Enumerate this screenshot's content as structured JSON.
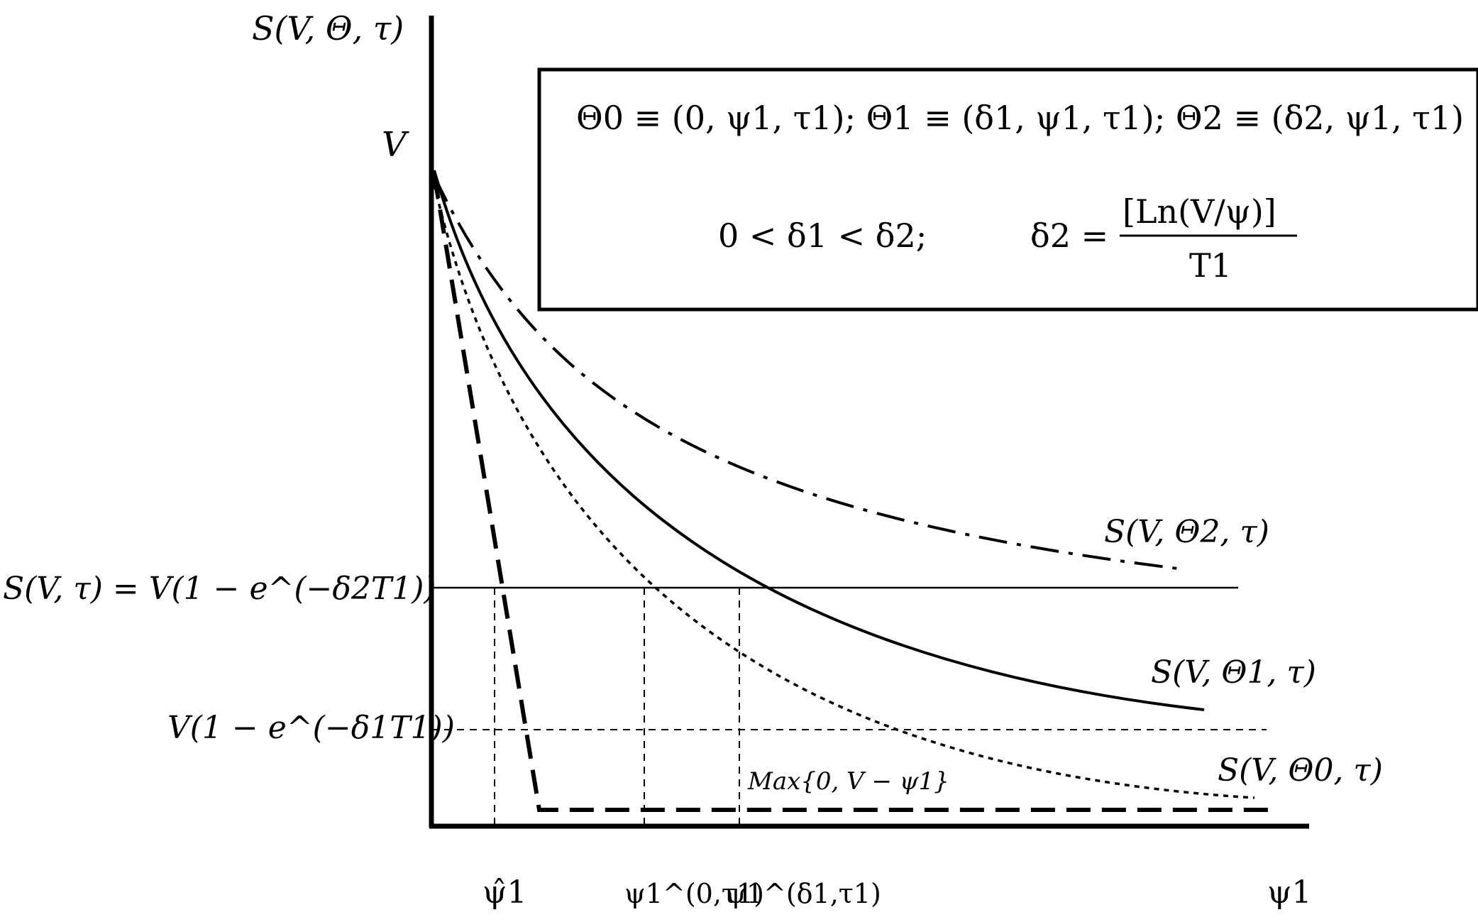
{
  "figure": {
    "y_axis_label": "S(V, Θ, τ)",
    "x_axis_label": "ψ1",
    "v_label": "V",
    "definitions_box": {
      "line1": "Θ0 ≡ (0, ψ1, τ1);  Θ1 ≡ (δ1, ψ1, τ1);  Θ2 ≡ (δ2, ψ1, τ1)",
      "line2_left": "0 < δ1 <  δ2;",
      "line2_eq": "δ2 =",
      "line2_num": "[Ln(V/ψ)]",
      "line2_den": "T1"
    },
    "level_labels": {
      "upper": "S(V, τ) = V(1 − e^(−δ2T1))",
      "lower": "V(1 − e^(−δ1T1))"
    },
    "curve_labels": {
      "theta2": "S(V, Θ2, τ)",
      "theta1": "S(V, Θ1, τ)",
      "theta0": "S(V, Θ0, τ)",
      "payoff": "Max{0, V − ψ1}"
    },
    "tick_labels": {
      "psi_hat": "ψ̂1",
      "psi_0": "ψ1^(0,τ1)",
      "psi_delta": "ψ1^(δ1,τ1)",
      "psi_end": "ψ1"
    }
  }
}
